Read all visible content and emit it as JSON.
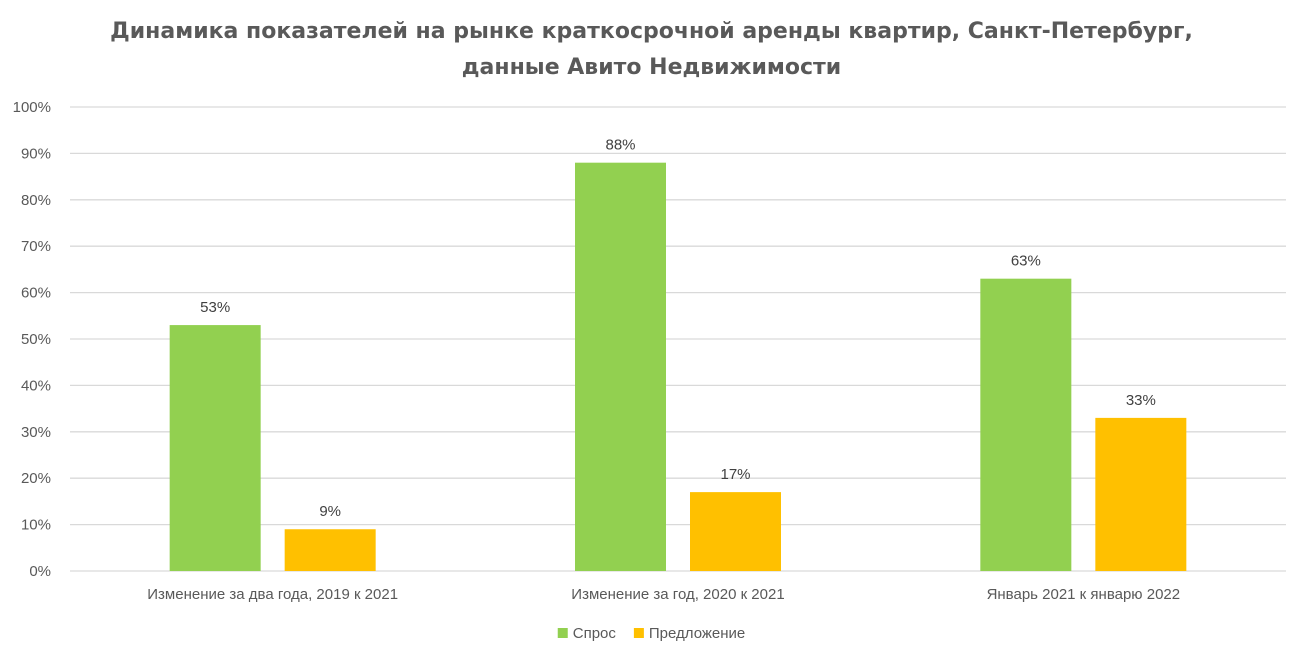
{
  "chart_data": {
    "type": "bar",
    "title_line1": "Динамика показателей на рынке краткосрочной аренды квартир, Санкт-Петербург,",
    "title_line2": "данные Авито Недвижимости",
    "categories": [
      "Изменение за два года, 2019 к 2021",
      "Изменение за год, 2020 к 2021",
      "Январь 2021 к январю 2022"
    ],
    "series": [
      {
        "name": "Спрос",
        "values": [
          53,
          88,
          63
        ],
        "color": "#92d050"
      },
      {
        "name": "Предложение",
        "values": [
          9,
          17,
          33
        ],
        "color": "#ffc000"
      }
    ],
    "data_labels": [
      [
        "53%",
        "88%",
        "63%"
      ],
      [
        "9%",
        "17%",
        "33%"
      ]
    ],
    "ylim": [
      0,
      100
    ],
    "yticks": [
      0,
      10,
      20,
      30,
      40,
      50,
      60,
      70,
      80,
      90,
      100
    ],
    "ytick_labels": [
      "0%",
      "10%",
      "20%",
      "30%",
      "40%",
      "50%",
      "60%",
      "70%",
      "80%",
      "90%",
      "100%"
    ],
    "grid": true,
    "legend_position": "bottom"
  }
}
